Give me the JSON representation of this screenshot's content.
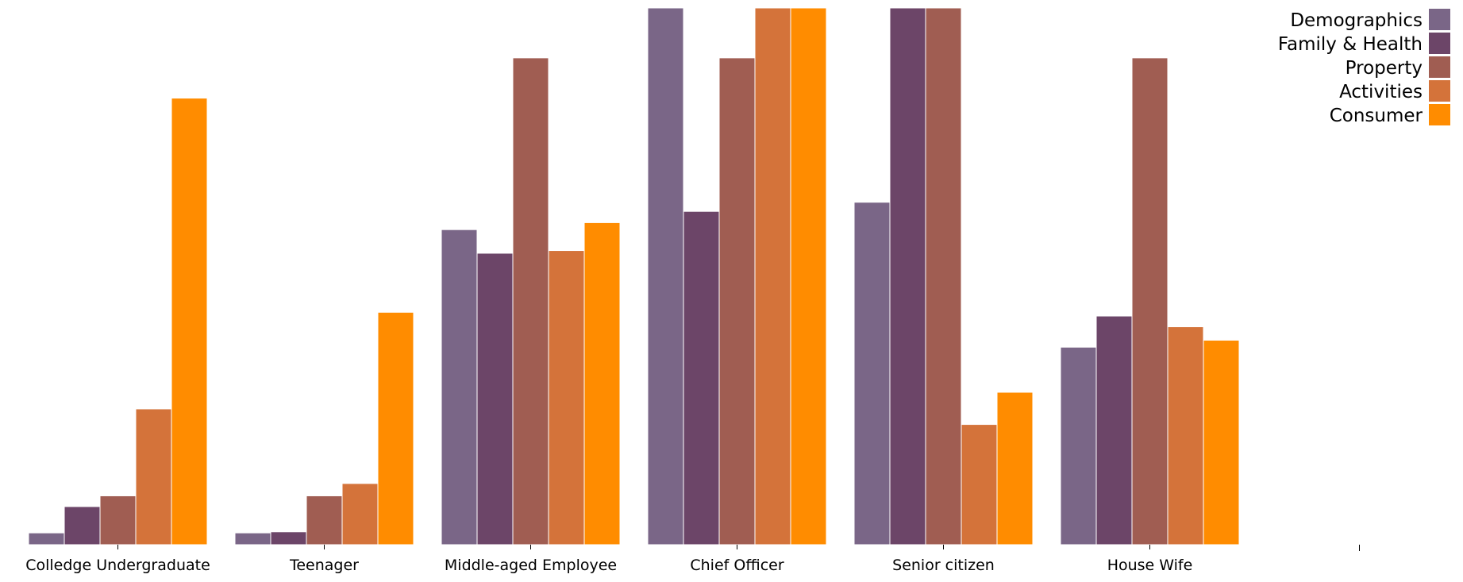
{
  "chart_data": {
    "type": "bar",
    "categories": [
      "Colledge Undergraduate",
      "Teenager",
      "Middle-aged Employee",
      "Chief Officer",
      "Senior citizen",
      "House Wife"
    ],
    "series": [
      {
        "name": "Demographics",
        "color": "#7a6687",
        "values": [
          2.2,
          2.2,
          58.7,
          100,
          63.8,
          36.8
        ]
      },
      {
        "name": "Family & Health",
        "color": "#6c4568",
        "values": [
          7.1,
          2.4,
          54.3,
          62.1,
          100,
          42.6
        ]
      },
      {
        "name": "Property",
        "color": "#a05d52",
        "values": [
          9.1,
          9.1,
          90.7,
          90.7,
          100,
          90.7
        ]
      },
      {
        "name": "Activities",
        "color": "#d4733a",
        "values": [
          25.3,
          11.4,
          54.8,
          100,
          22.4,
          40.6
        ]
      },
      {
        "name": "Consumer",
        "color": "#ff8c00",
        "values": [
          83.2,
          43.3,
          60.0,
          100,
          28.4,
          38.1
        ]
      }
    ],
    "ylim": [
      0,
      100
    ],
    "legend_position": "top-right",
    "grid": false
  }
}
